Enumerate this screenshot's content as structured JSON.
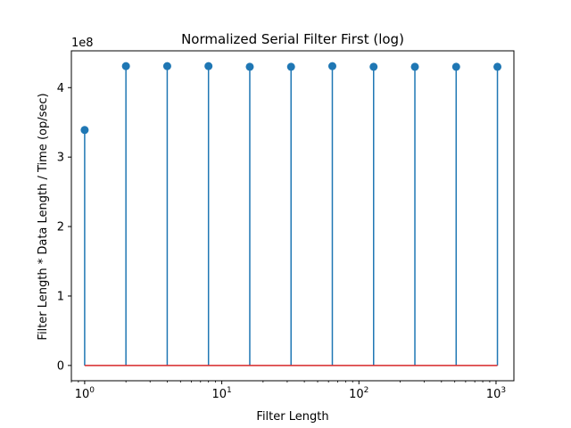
{
  "chart_data": {
    "type": "stem",
    "title": "Normalized Serial Filter First (log)",
    "xlabel": "Filter Length",
    "ylabel": "Filter Length * Data Length / Time (op/sec)",
    "x_scale": "log",
    "x_scale_base": 10,
    "xlim": [
      0.8,
      1350
    ],
    "ylim": [
      -22000000.0,
      453000000.0
    ],
    "y_offset_label": "1e8",
    "x_tick_labels": [
      {
        "value": 1,
        "base": "10",
        "exp": "0"
      },
      {
        "value": 10,
        "base": "10",
        "exp": "1"
      },
      {
        "value": 100,
        "base": "10",
        "exp": "2"
      },
      {
        "value": 1000,
        "base": "10",
        "exp": "3"
      }
    ],
    "y_tick_labels": [
      {
        "value": 0,
        "label": "0"
      },
      {
        "value": 100000000,
        "label": "1"
      },
      {
        "value": 200000000,
        "label": "2"
      },
      {
        "value": 300000000,
        "label": "3"
      },
      {
        "value": 400000000,
        "label": "4"
      }
    ],
    "x": [
      1,
      2,
      4,
      8,
      16,
      32,
      64,
      128,
      256,
      512,
      1024
    ],
    "values": [
      339000000,
      431000000,
      431000000,
      431000000,
      430000000,
      430000000,
      431000000,
      430000000,
      430000000,
      430000000,
      430000000
    ],
    "stem_color": "#1f77b4",
    "marker_color": "#1f77b4",
    "baseline_color": "#d62728",
    "baseline_value": 0,
    "grid": false
  }
}
